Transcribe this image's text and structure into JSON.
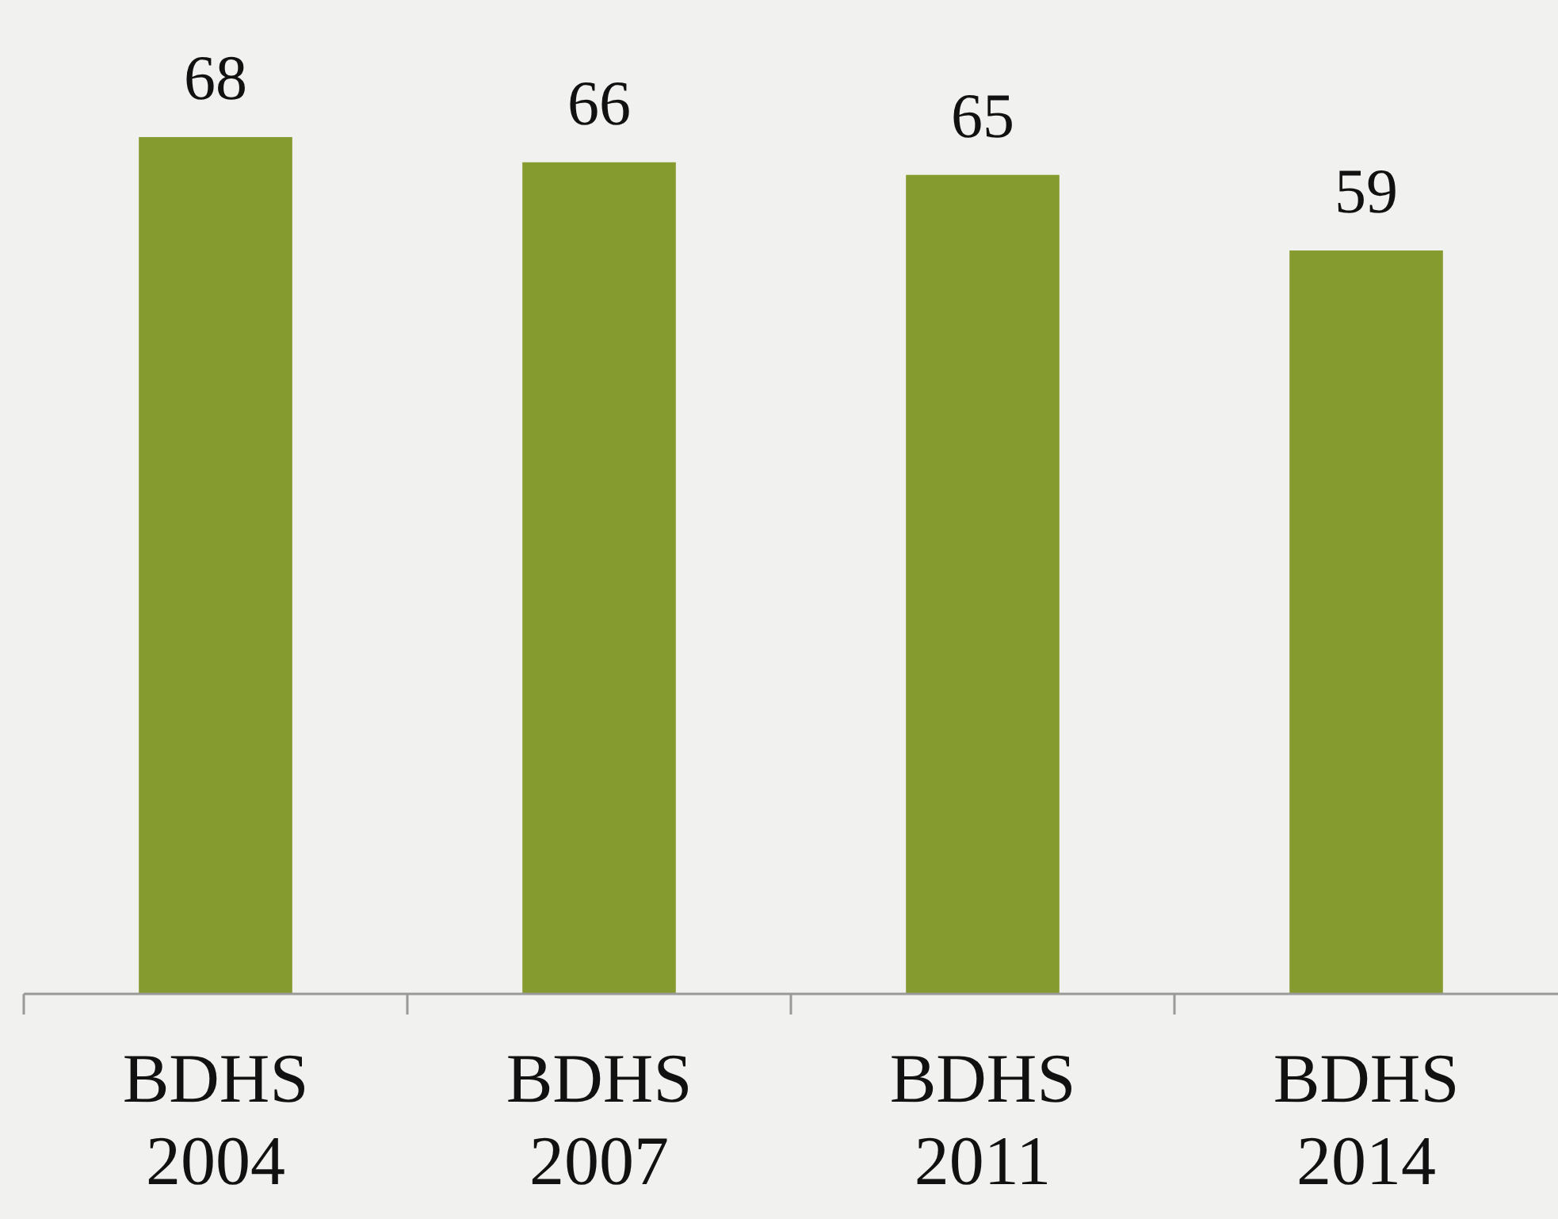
{
  "chart_data": {
    "type": "bar",
    "categories": [
      "BDHS 2004",
      "BDHS 2007",
      "BDHS 2011",
      "BDHS 2014"
    ],
    "values": [
      68,
      66,
      65,
      59
    ],
    "color": "#859a2f",
    "data_labels": true
  }
}
